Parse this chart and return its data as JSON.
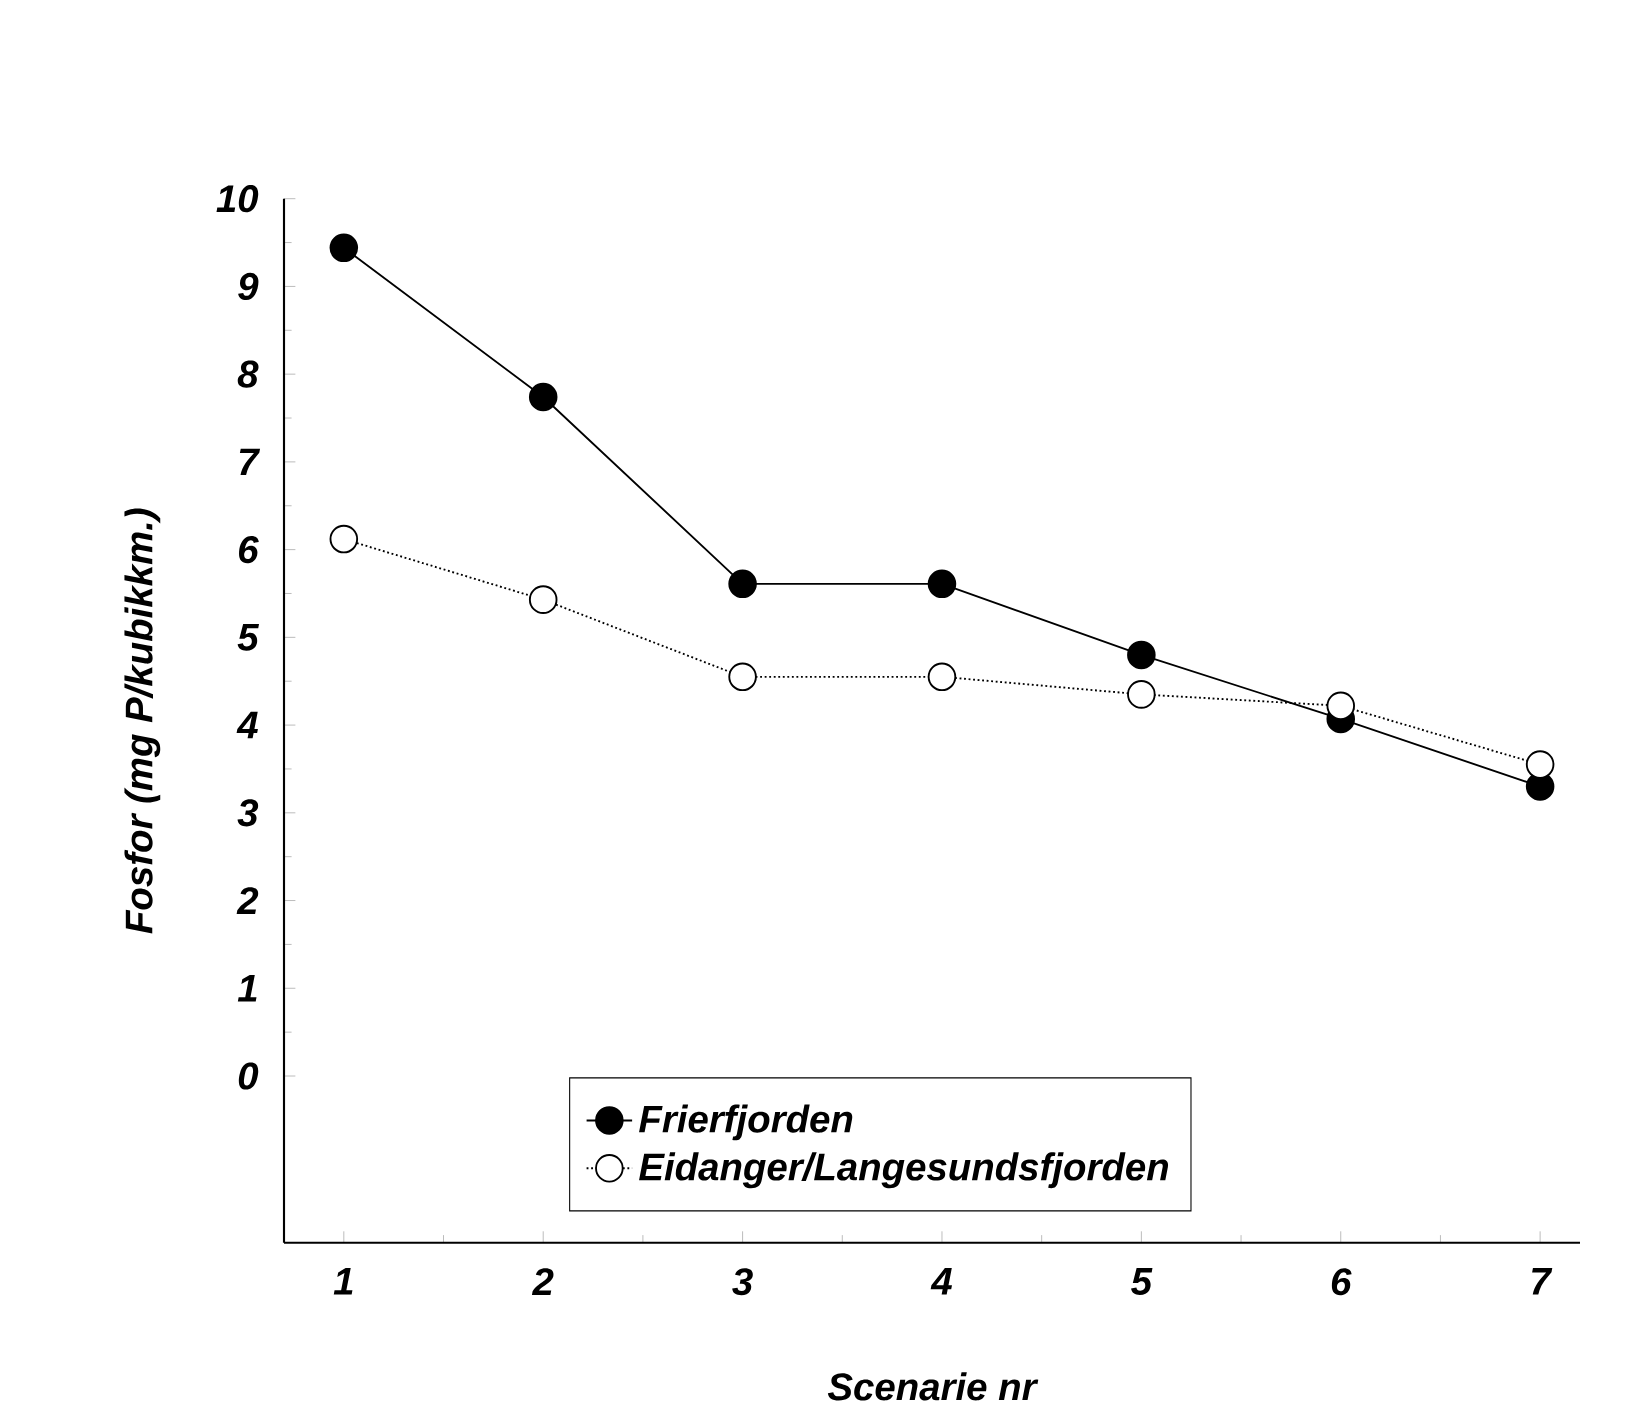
{
  "chart_data": {
    "type": "line",
    "xlabel": "Scenarie nr",
    "ylabel": "Fosfor (mg P/kubikkm.)",
    "x": [
      1,
      2,
      3,
      4,
      5,
      6,
      7
    ],
    "series": [
      {
        "name": "Frierfjorden",
        "color": "#000000",
        "line_style": "solid",
        "values": [
          9.44,
          7.74,
          5.61,
          5.61,
          4.8,
          4.07,
          3.3
        ]
      },
      {
        "name": "Eidanger/Langesundsfjorden",
        "color": "#000000",
        "line_style": "dotted",
        "values": [
          6.12,
          5.43,
          4.55,
          4.55,
          4.35,
          4.22,
          3.55
        ]
      }
    ],
    "marker": "circle",
    "legend": "bottom left",
    "grid": false,
    "xlim": [
      0.7,
      7.2
    ],
    "xticks": [
      1,
      2,
      3,
      4,
      5,
      6,
      7
    ],
    "ylim": [
      -1.9,
      10
    ],
    "yticks": [
      0,
      1,
      2,
      3,
      4,
      5,
      6,
      7,
      8,
      9,
      10
    ]
  }
}
